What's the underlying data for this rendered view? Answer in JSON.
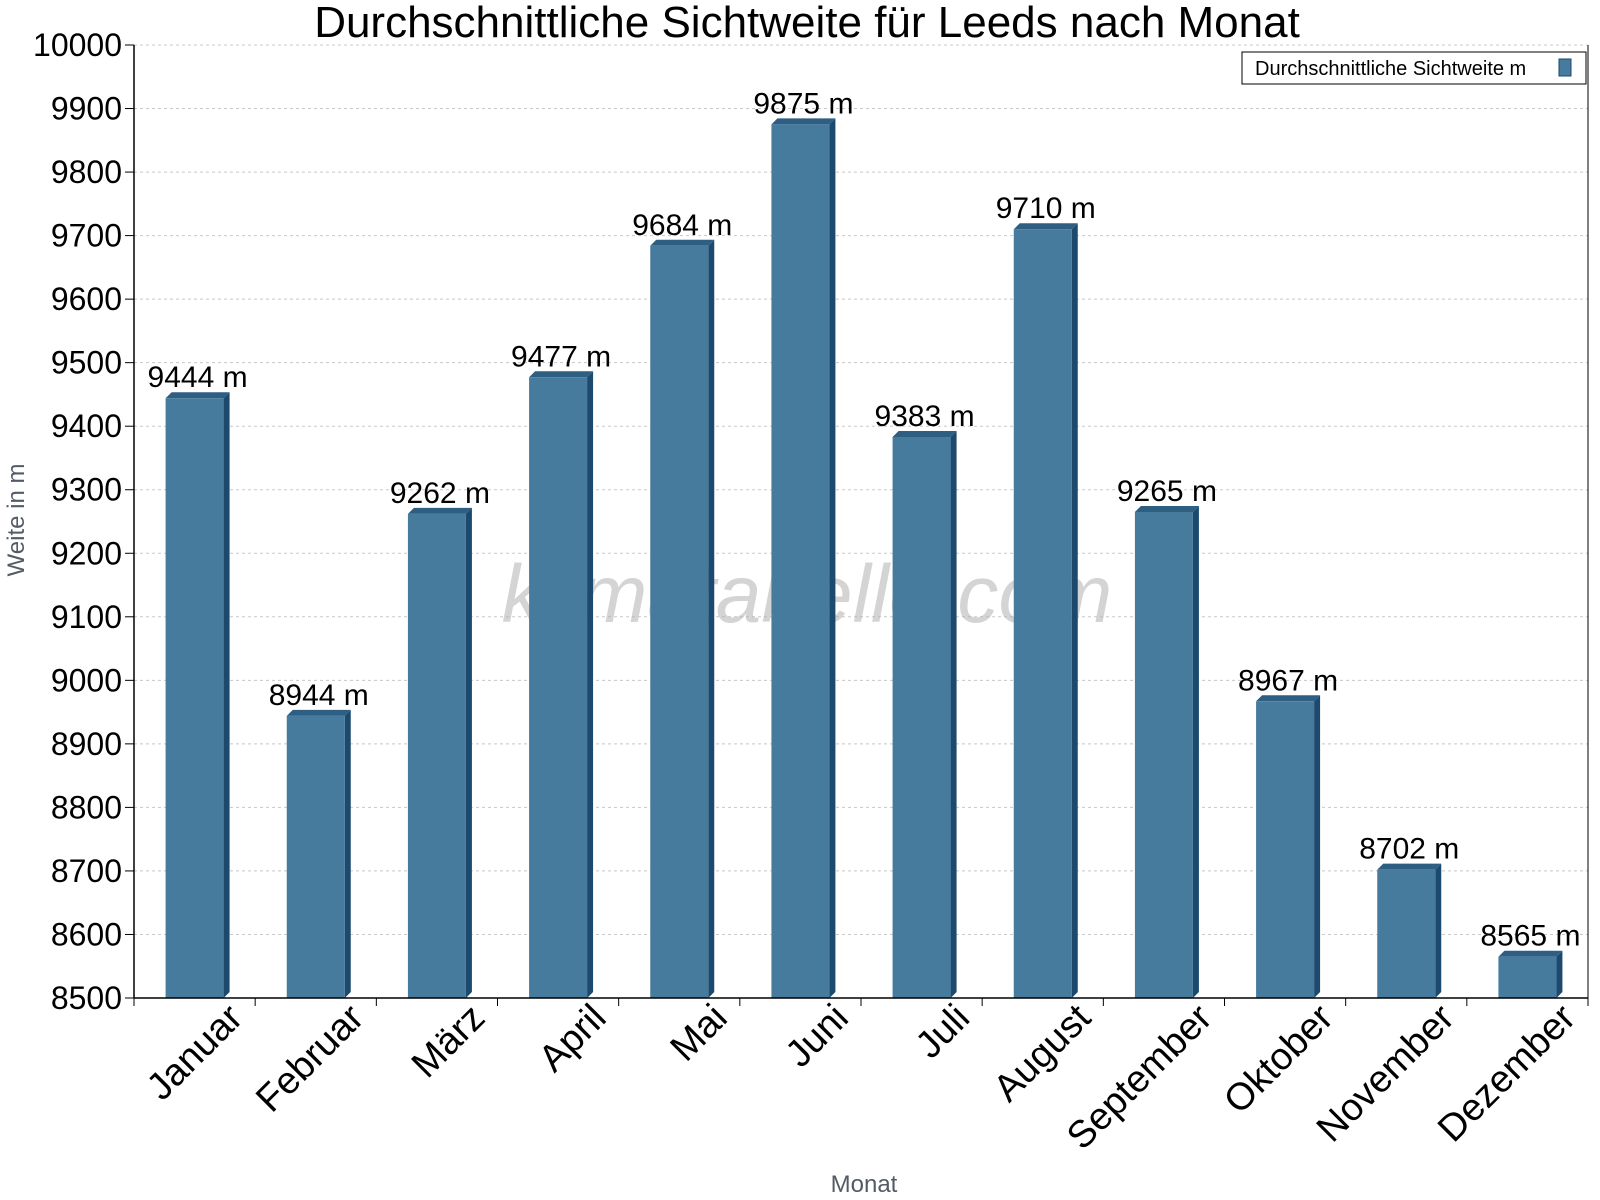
{
  "chart_data": {
    "type": "bar",
    "title": "Durchschnittliche Sichtweite für Leeds nach Monat",
    "xlabel": "Monat",
    "ylabel": "Weite in m",
    "categories": [
      "Januar",
      "Februar",
      "März",
      "April",
      "Mai",
      "Juni",
      "Juli",
      "August",
      "September",
      "Oktober",
      "November",
      "Dezember"
    ],
    "series": [
      {
        "name": "Durchschnittliche Sichtweite m",
        "values": [
          9444,
          8944,
          9262,
          9477,
          9684,
          9875,
          9383,
          9710,
          9265,
          8967,
          8702,
          8565
        ],
        "value_labels": [
          "9444 m",
          "8944 m",
          "9262 m",
          "9477 m",
          "9684 m",
          "9875 m",
          "9383 m",
          "9710 m",
          "9265 m",
          "8967 m",
          "8702 m",
          "8565 m"
        ]
      }
    ],
    "ylim": [
      8500,
      10000
    ],
    "yticks": [
      "8500",
      "8600",
      "8700",
      "8800",
      "8900",
      "9000",
      "9100",
      "9200",
      "9300",
      "9400",
      "9500",
      "9600",
      "9700",
      "9800",
      "9900",
      "10000"
    ],
    "grid": true,
    "legend": "top-right",
    "watermark": "klimatabelle.com",
    "colors": {
      "bar": "#467b9e",
      "bar_side": "#1c4a6e",
      "bar_top": "#2e5f83",
      "grid": "#c8c8c8"
    }
  }
}
